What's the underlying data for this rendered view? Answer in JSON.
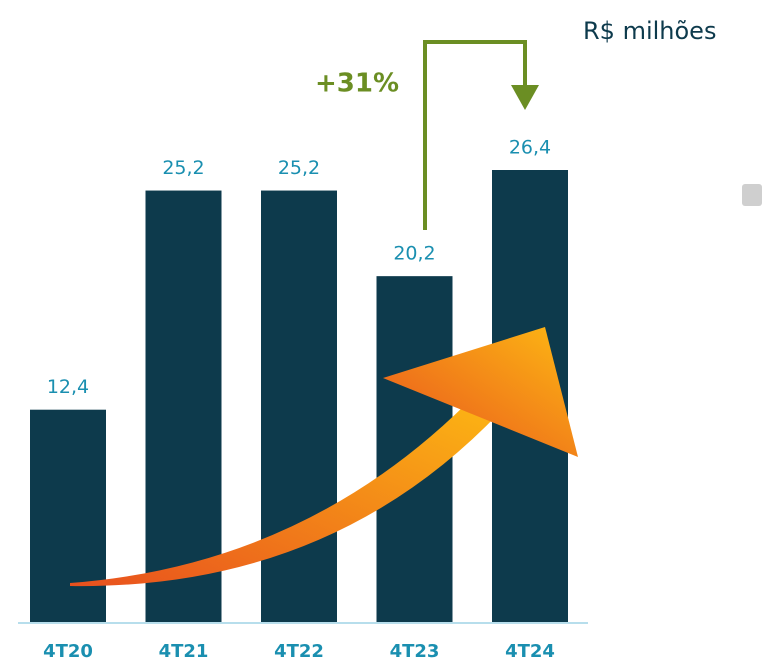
{
  "chart_data": {
    "type": "bar",
    "subtitle": "R$ milhões",
    "annotation": "+31%",
    "categories": [
      "4T20",
      "4T21",
      "4T22",
      "4T23",
      "4T24"
    ],
    "values": [
      12.4,
      25.2,
      25.2,
      20.2,
      26.4
    ],
    "value_labels": [
      "12,4",
      "25,2",
      "25,2",
      "20,2",
      "26,4"
    ],
    "color": "#0d3a4c"
  }
}
